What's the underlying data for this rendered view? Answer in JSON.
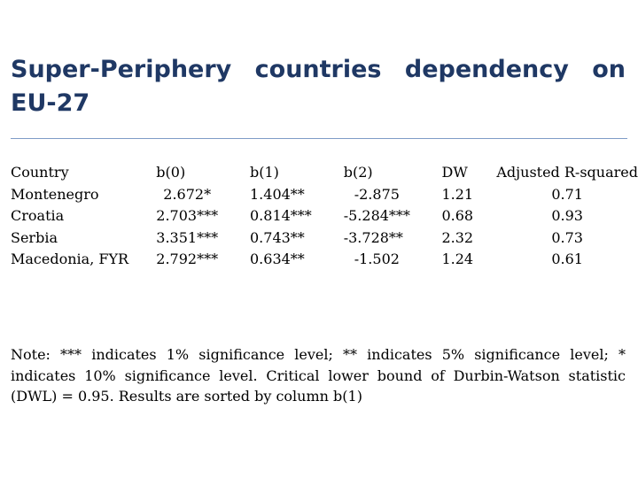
{
  "title": "Super-Periphery countries dependency on EU-27",
  "table": {
    "headers": {
      "country": "Country",
      "b0": "b(0)",
      "b1": "b(1)",
      "b2": "b(2)",
      "dw": "DW",
      "r2": "Adjusted R-squared"
    },
    "rows": [
      {
        "country": "Montenegro",
        "b0": "2.672*",
        "b1": "1.404**",
        "b2": "-2.875",
        "dw": "1.21",
        "r2": "0.71"
      },
      {
        "country": "Croatia",
        "b0": "2.703***",
        "b1": "0.814***",
        "b2": "-5.284***",
        "dw": "0.68",
        "r2": "0.93"
      },
      {
        "country": "Serbia",
        "b0": "3.351***",
        "b1": "0.743**",
        "b2": "-3.728**",
        "dw": "2.32",
        "r2": "0.73"
      },
      {
        "country": "Macedonia, FYR",
        "b0": "2.792***",
        "b1": "0.634**",
        "b2": "-1.502",
        "dw": "1.24",
        "r2": "0.61"
      }
    ]
  },
  "note": "Note: *** indicates 1% significance level; ** indicates 5% significance level; * indicates 10% significance level. Critical lower bound of Durbin-Watson statistic (DWL) = 0.95. Results are sorted by column b(1)"
}
